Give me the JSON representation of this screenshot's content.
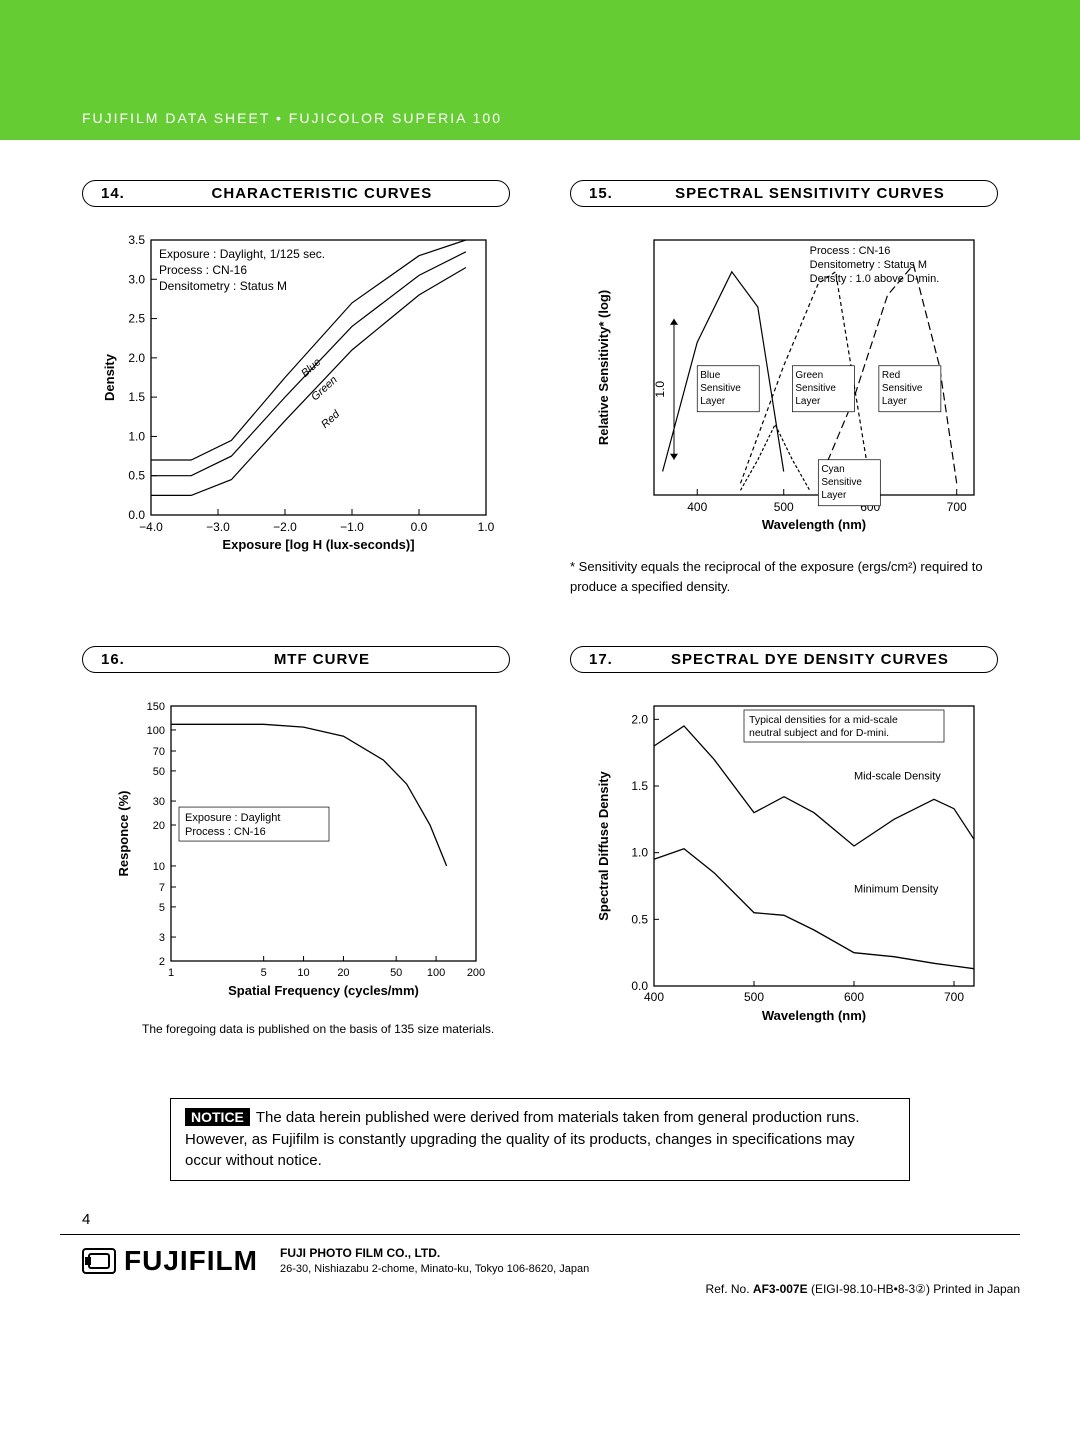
{
  "banner": "FUJIFILM  DATA  SHEET  •  FUJICOLOR  SUPERIA 100",
  "sections": {
    "s14": {
      "num": "14.",
      "title": "CHARACTERISTIC  CURVES"
    },
    "s15": {
      "num": "15.",
      "title": "SPECTRAL SENSITIVITY  CURVES"
    },
    "s16": {
      "num": "16.",
      "title": "MTF CURVE"
    },
    "s17": {
      "num": "17.",
      "title": "SPECTRAL DYE DENSITY CURVES"
    }
  },
  "chart14": {
    "type": "line",
    "xlabel": "Exposure [log H (lux-seconds)]",
    "ylabel": "Density",
    "xlim": [
      -4.0,
      1.0
    ],
    "ylim": [
      0.0,
      3.5
    ],
    "xtick_step": 1.0,
    "ytick_step": 0.5,
    "xticks": [
      "−4.0",
      "−3.0",
      "−2.0",
      "−1.0",
      "0.0",
      "1.0"
    ],
    "yticks": [
      "0.0",
      "0.5",
      "1.0",
      "1.5",
      "2.0",
      "2.5",
      "3.0",
      "3.5"
    ],
    "legend_lines": [
      "Exposure          : Daylight,  1/125 sec.",
      "Process            : CN-16",
      "Densitometry : Status M"
    ],
    "series": [
      {
        "name": "Blue",
        "color": "#000",
        "data": [
          [
            -4.0,
            0.7
          ],
          [
            -3.4,
            0.7
          ],
          [
            -2.8,
            0.95
          ],
          [
            -2.0,
            1.75
          ],
          [
            -1.0,
            2.7
          ],
          [
            0.0,
            3.3
          ],
          [
            0.7,
            3.5
          ]
        ]
      },
      {
        "name": "Green",
        "color": "#000",
        "data": [
          [
            -4.0,
            0.5
          ],
          [
            -3.4,
            0.5
          ],
          [
            -2.8,
            0.75
          ],
          [
            -2.0,
            1.5
          ],
          [
            -1.0,
            2.4
          ],
          [
            0.0,
            3.05
          ],
          [
            0.7,
            3.35
          ]
        ]
      },
      {
        "name": "Red",
        "color": "#000",
        "data": [
          [
            -4.0,
            0.25
          ],
          [
            -3.4,
            0.25
          ],
          [
            -2.8,
            0.45
          ],
          [
            -2.0,
            1.2
          ],
          [
            -1.0,
            2.1
          ],
          [
            0.0,
            2.8
          ],
          [
            0.7,
            3.15
          ]
        ]
      }
    ],
    "inline_labels": {
      "Blue": "Blue",
      "Green": "Green",
      "Red": "Red"
    },
    "background_color": "#ffffff",
    "grid_color": "#000",
    "line_width": 1.2
  },
  "chart15": {
    "type": "line",
    "xlabel": "Wavelength (nm)",
    "ylabel": "Relative Sensitivity* (log)",
    "xlim": [
      350,
      720
    ],
    "xticks": [
      "400",
      "500",
      "600",
      "700"
    ],
    "yscale_arrow": "1.0",
    "legend_lines": [
      "Process             : CN-16",
      "Densitometry  : Status M",
      "Density             : 1.0 above D-min."
    ],
    "layer_labels": {
      "blue": "Blue Sensitive Layer",
      "green": "Green Sensitive Layer",
      "red": "Red Sensitive Layer",
      "cyan": "Cyan Sensitive Layer"
    },
    "series": [
      {
        "name": "Blue",
        "dash": "none",
        "data": [
          [
            360,
            0.1
          ],
          [
            400,
            0.65
          ],
          [
            440,
            0.95
          ],
          [
            470,
            0.8
          ],
          [
            500,
            0.1
          ]
        ]
      },
      {
        "name": "Green",
        "dash": "4,3",
        "data": [
          [
            450,
            0.05
          ],
          [
            500,
            0.55
          ],
          [
            540,
            0.9
          ],
          [
            560,
            0.95
          ],
          [
            580,
            0.5
          ],
          [
            600,
            0.05
          ]
        ]
      },
      {
        "name": "Red",
        "dash": "8,4",
        "data": [
          [
            540,
            0.05
          ],
          [
            580,
            0.4
          ],
          [
            620,
            0.85
          ],
          [
            650,
            0.98
          ],
          [
            680,
            0.55
          ],
          [
            700,
            0.05
          ]
        ]
      },
      {
        "name": "Cyan",
        "dash": "3,2",
        "data": [
          [
            450,
            0.02
          ],
          [
            470,
            0.15
          ],
          [
            490,
            0.3
          ],
          [
            510,
            0.15
          ],
          [
            530,
            0.02
          ]
        ]
      }
    ],
    "footnote": "*  Sensitivity equals the reciprocal of the exposure (ergs/cm²) required to produce a specified density.",
    "background_color": "#ffffff",
    "line_width": 1.2
  },
  "chart16": {
    "type": "line-log",
    "xlabel": "Spatial Frequency (cycles/mm)",
    "ylabel": "Responce (%)",
    "xlim": [
      1,
      200
    ],
    "ylim": [
      2,
      150
    ],
    "xticks": [
      "1",
      "5",
      "10",
      "20",
      "50",
      "100",
      "200"
    ],
    "yticks": [
      "2",
      "3",
      "5",
      "7",
      "10",
      "20",
      "30",
      "50",
      "70",
      "100",
      "150"
    ],
    "legend_lines": [
      "Exposure : Daylight",
      "Process   : CN-16"
    ],
    "series": [
      {
        "name": "MTF",
        "data": [
          [
            1,
            110
          ],
          [
            5,
            110
          ],
          [
            10,
            105
          ],
          [
            20,
            90
          ],
          [
            40,
            60
          ],
          [
            60,
            40
          ],
          [
            90,
            20
          ],
          [
            120,
            10
          ]
        ]
      }
    ],
    "caption": "The foregoing data is published on the basis of 135 size materials.",
    "background_color": "#ffffff",
    "line_width": 1.3
  },
  "chart17": {
    "type": "line",
    "xlabel": "Wavelength (nm)",
    "ylabel": "Spectral Diffuse Density",
    "xlim": [
      400,
      720
    ],
    "ylim": [
      0.0,
      2.1
    ],
    "xticks": [
      "400",
      "500",
      "600",
      "700"
    ],
    "yticks": [
      "0.0",
      "0.5",
      "1.0",
      "1.5",
      "2.0"
    ],
    "legend_lines": [
      "Typical densities for a mid-scale",
      "neutral subject and for D-mini."
    ],
    "annotations": {
      "mid": "Mid-scale Density",
      "min": "Minimum Density"
    },
    "series": [
      {
        "name": "mid",
        "data": [
          [
            400,
            1.8
          ],
          [
            430,
            1.95
          ],
          [
            460,
            1.7
          ],
          [
            500,
            1.3
          ],
          [
            530,
            1.42
          ],
          [
            560,
            1.3
          ],
          [
            600,
            1.05
          ],
          [
            640,
            1.25
          ],
          [
            680,
            1.4
          ],
          [
            700,
            1.33
          ],
          [
            720,
            1.1
          ]
        ]
      },
      {
        "name": "min",
        "data": [
          [
            400,
            0.95
          ],
          [
            430,
            1.03
          ],
          [
            460,
            0.85
          ],
          [
            500,
            0.55
          ],
          [
            530,
            0.53
          ],
          [
            560,
            0.42
          ],
          [
            600,
            0.25
          ],
          [
            640,
            0.22
          ],
          [
            680,
            0.17
          ],
          [
            700,
            0.15
          ],
          [
            720,
            0.13
          ]
        ]
      }
    ],
    "background_color": "#ffffff",
    "line_width": 1.3
  },
  "notice": {
    "badge": "NOTICE",
    "text": "The data herein published were derived from materials taken from general production runs.  However, as Fujifilm is constantly upgrading the quality of its products, changes in specifications may occur without notice."
  },
  "page_number": "4",
  "footer": {
    "brand": "FUJIFILM",
    "company": "FUJI PHOTO FILM CO., LTD.",
    "address": "26-30, Nishiazabu 2-chome, Minato-ku, Tokyo 106-8620, Japan",
    "refno_label": "Ref. No. ",
    "refno": "AF3-007E",
    "reftail": " (EIGI-98.10-HB•8-3②) Printed in Japan"
  }
}
